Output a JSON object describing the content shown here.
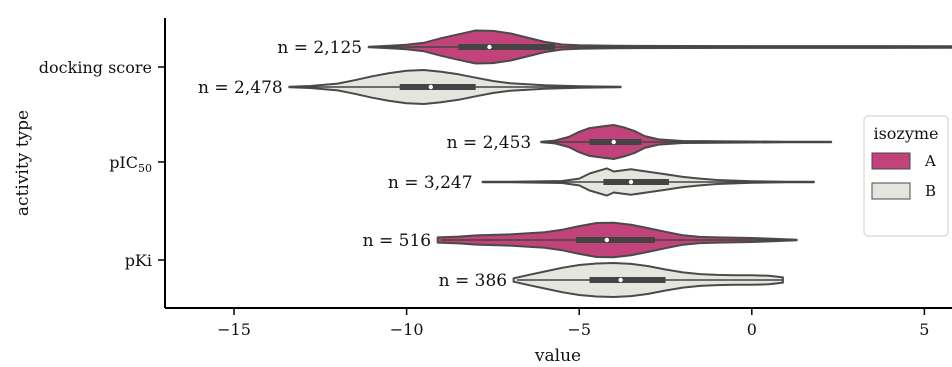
{
  "chart_data": {
    "type": "violin",
    "orientation": "horizontal",
    "xlabel": "value",
    "ylabel": "activity type",
    "xlim": [
      -17.0,
      5.8
    ],
    "x_ticks": [
      -15,
      -10,
      -5,
      0,
      5
    ],
    "x_tick_labels": [
      "−15",
      "−10",
      "−5",
      "0",
      "5"
    ],
    "categories": [
      "docking score",
      "pIC50",
      "pKi"
    ],
    "category_labels": [
      {
        "base": "docking score",
        "sub": ""
      },
      {
        "base": "pIC",
        "sub": "50"
      },
      {
        "base": "pKi",
        "sub": ""
      }
    ],
    "legend": {
      "title": "isozyme",
      "placement": "right",
      "entries": [
        {
          "label": "A",
          "color": "#c2437a"
        },
        {
          "label": "B",
          "color": "#e5e5df"
        }
      ]
    },
    "outline_color": "#4a4a4a",
    "box_color": "#444444",
    "grid": false,
    "series": [
      {
        "name": "A",
        "color": "#c2437a",
        "violins": [
          {
            "category": "docking score",
            "n_label": "n = 2,125",
            "median": -7.6,
            "q1": -8.5,
            "q3": -5.7,
            "whisker": [
              -11.0,
              5.8
            ],
            "profile": [
              [
                -11.1,
                0.02
              ],
              [
                -10.5,
                0.07
              ],
              [
                -10.0,
                0.13
              ],
              [
                -9.5,
                0.25
              ],
              [
                -9.0,
                0.52
              ],
              [
                -8.5,
                0.75
              ],
              [
                -8.0,
                0.97
              ],
              [
                -7.5,
                0.95
              ],
              [
                -7.0,
                0.8
              ],
              [
                -6.5,
                0.55
              ],
              [
                -6.0,
                0.3
              ],
              [
                -5.5,
                0.15
              ],
              [
                -5.0,
                0.1
              ],
              [
                -4.0,
                0.07
              ],
              [
                -2.0,
                0.06
              ],
              [
                0.0,
                0.05
              ],
              [
                3.0,
                0.05
              ],
              [
                5.8,
                0.04
              ]
            ]
          },
          {
            "category": "pIC50",
            "n_label": "n = 2,453",
            "median": -4.0,
            "q1": -4.7,
            "q3": -3.2,
            "whisker": [
              -6.1,
              2.3
            ],
            "profile": [
              [
                -6.1,
                0.02
              ],
              [
                -5.7,
                0.08
              ],
              [
                -5.3,
                0.3
              ],
              [
                -5.0,
                0.6
              ],
              [
                -4.7,
                0.82
              ],
              [
                -4.3,
                0.93
              ],
              [
                -4.0,
                1.0
              ],
              [
                -3.7,
                0.85
              ],
              [
                -3.4,
                0.65
              ],
              [
                -3.1,
                0.35
              ],
              [
                -2.7,
                0.15
              ],
              [
                -2.0,
                0.06
              ],
              [
                -1.0,
                0.04
              ],
              [
                0.0,
                0.03
              ],
              [
                1.0,
                0.02
              ],
              [
                2.3,
                0.01
              ]
            ]
          },
          {
            "category": "pKi",
            "n_label": "n = 516",
            "median": -4.2,
            "q1": -5.1,
            "q3": -2.8,
            "whisker": [
              -9.0,
              1.3
            ],
            "profile": [
              [
                -9.1,
                0.15
              ],
              [
                -8.5,
                0.2
              ],
              [
                -8.0,
                0.27
              ],
              [
                -7.0,
                0.33
              ],
              [
                -6.0,
                0.45
              ],
              [
                -5.5,
                0.6
              ],
              [
                -5.0,
                0.82
              ],
              [
                -4.5,
                1.0
              ],
              [
                -4.0,
                1.02
              ],
              [
                -3.5,
                0.9
              ],
              [
                -3.0,
                0.7
              ],
              [
                -2.5,
                0.48
              ],
              [
                -2.0,
                0.28
              ],
              [
                -1.5,
                0.18
              ],
              [
                -1.0,
                0.15
              ],
              [
                0.0,
                0.12
              ],
              [
                0.8,
                0.06
              ],
              [
                1.3,
                0.02
              ]
            ]
          }
        ]
      },
      {
        "name": "B",
        "color": "#e5e5df",
        "violins": [
          {
            "category": "docking score",
            "n_label": "n = 2,478",
            "median": -9.3,
            "q1": -10.2,
            "q3": -8.0,
            "whisker": [
              -13.3,
              -3.8
            ],
            "profile": [
              [
                -13.4,
                0.02
              ],
              [
                -12.8,
                0.06
              ],
              [
                -12.0,
                0.2
              ],
              [
                -11.5,
                0.4
              ],
              [
                -11.0,
                0.63
              ],
              [
                -10.5,
                0.82
              ],
              [
                -10.0,
                0.95
              ],
              [
                -9.5,
                1.0
              ],
              [
                -9.0,
                0.9
              ],
              [
                -8.5,
                0.75
              ],
              [
                -8.0,
                0.55
              ],
              [
                -7.5,
                0.35
              ],
              [
                -7.0,
                0.22
              ],
              [
                -6.0,
                0.1
              ],
              [
                -5.0,
                0.04
              ],
              [
                -3.8,
                0.02
              ]
            ]
          },
          {
            "category": "pIC50",
            "n_label": "n = 3,247",
            "median": -3.5,
            "q1": -4.3,
            "q3": -2.4,
            "whisker": [
              -7.8,
              1.8
            ],
            "profile": [
              [
                -7.8,
                0.02
              ],
              [
                -7.0,
                0.02
              ],
              [
                -6.0,
                0.04
              ],
              [
                -5.5,
                0.06
              ],
              [
                -5.0,
                0.2
              ],
              [
                -4.7,
                0.5
              ],
              [
                -4.2,
                0.8
              ],
              [
                -4.0,
                0.62
              ],
              [
                -3.5,
                0.75
              ],
              [
                -3.0,
                0.6
              ],
              [
                -2.5,
                0.45
              ],
              [
                -2.0,
                0.3
              ],
              [
                -1.5,
                0.2
              ],
              [
                -1.0,
                0.12
              ],
              [
                0.0,
                0.05
              ],
              [
                1.0,
                0.02
              ],
              [
                1.8,
                0.01
              ]
            ]
          },
          {
            "category": "pKi",
            "n_label": "n = 386",
            "median": -3.8,
            "q1": -4.7,
            "q3": -2.5,
            "whisker": [
              -6.8,
              0.9
            ],
            "profile": [
              [
                -6.9,
                0.1
              ],
              [
                -6.5,
                0.28
              ],
              [
                -6.0,
                0.5
              ],
              [
                -5.5,
                0.72
              ],
              [
                -5.0,
                0.88
              ],
              [
                -4.5,
                0.97
              ],
              [
                -4.0,
                1.0
              ],
              [
                -3.5,
                0.95
              ],
              [
                -3.0,
                0.82
              ],
              [
                -2.5,
                0.62
              ],
              [
                -2.0,
                0.45
              ],
              [
                -1.5,
                0.35
              ],
              [
                -1.0,
                0.3
              ],
              [
                -0.5,
                0.28
              ],
              [
                0.0,
                0.28
              ],
              [
                0.5,
                0.25
              ],
              [
                0.9,
                0.15
              ]
            ]
          }
        ]
      }
    ]
  }
}
